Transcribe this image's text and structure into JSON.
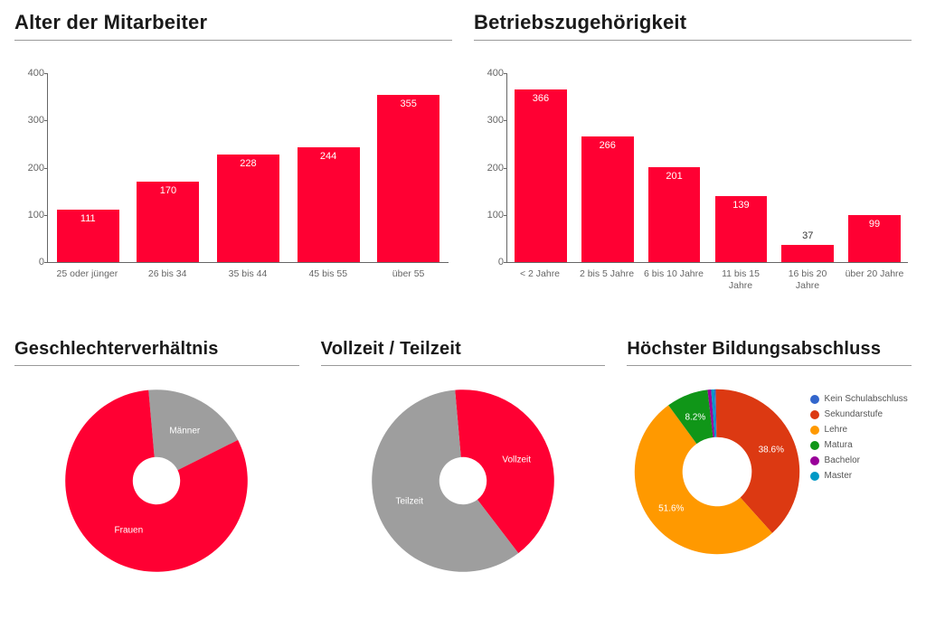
{
  "colors": {
    "primary": "#ff0033",
    "grey": "#9e9e9e",
    "axis": "#666666",
    "text": "#1a1a1a",
    "bg": "#ffffff"
  },
  "chart_age": {
    "type": "bar",
    "title": "Alter der Mitarbeiter",
    "ylim": [
      0,
      400
    ],
    "ytick_step": 100,
    "bar_color": "#ff0033",
    "categories": [
      "25 oder jünger",
      "26 bis 34",
      "35 bis 44",
      "45 bis 55",
      "über 55"
    ],
    "values": [
      111,
      170,
      228,
      244,
      355
    ],
    "label_fontsize": 11
  },
  "chart_tenure": {
    "type": "bar",
    "title": "Betriebszugehörigkeit",
    "ylim": [
      0,
      400
    ],
    "ytick_step": 100,
    "bar_color": "#ff0033",
    "categories": [
      "< 2 Jahre",
      "2 bis 5 Jahre",
      "6 bis 10 Jahre",
      "11 bis 15 Jahre",
      "16 bis 20 Jahre",
      "über 20 Jahre"
    ],
    "values": [
      366,
      266,
      201,
      139,
      37,
      99
    ],
    "label_fontsize": 11
  },
  "chart_gender": {
    "type": "donut",
    "title": "Geschlechterverhältnis",
    "inner_radius": 0.26,
    "start_angle": -5,
    "slices": [
      {
        "label": "Männer",
        "value": 19,
        "color": "#9e9e9e"
      },
      {
        "label": "Frauen",
        "value": 81,
        "color": "#ff0033"
      }
    ],
    "show_legend": false,
    "label_fontsize": 10
  },
  "chart_fulltime": {
    "type": "donut",
    "title": "Vollzeit / Teilzeit",
    "inner_radius": 0.26,
    "start_angle": -5,
    "slices": [
      {
        "label": "Vollzeit",
        "value": 41,
        "color": "#ff0033"
      },
      {
        "label": "Teilzeit",
        "value": 59,
        "color": "#9e9e9e"
      }
    ],
    "show_legend": false,
    "label_fontsize": 10
  },
  "chart_edu": {
    "type": "donut",
    "title": "Höchster Bildungsabschluss",
    "inner_radius": 0.42,
    "start_angle": -2,
    "slices": [
      {
        "label": "Kein Schulabschluss",
        "value": 0.3,
        "color": "#3366cc",
        "show_label": false
      },
      {
        "label": "Sekundarstufe",
        "value": 38.6,
        "color": "#dc3912",
        "display": "38.6%"
      },
      {
        "label": "Lehre",
        "value": 51.6,
        "color": "#ff9900",
        "display": "51.6%"
      },
      {
        "label": "Matura",
        "value": 8.2,
        "color": "#109618",
        "display": "8.2%"
      },
      {
        "label": "Bachelor",
        "value": 0.7,
        "color": "#990099",
        "show_label": false
      },
      {
        "label": "Master",
        "value": 0.6,
        "color": "#0099c6",
        "show_label": false
      }
    ],
    "show_legend": true,
    "label_fontsize": 10
  }
}
